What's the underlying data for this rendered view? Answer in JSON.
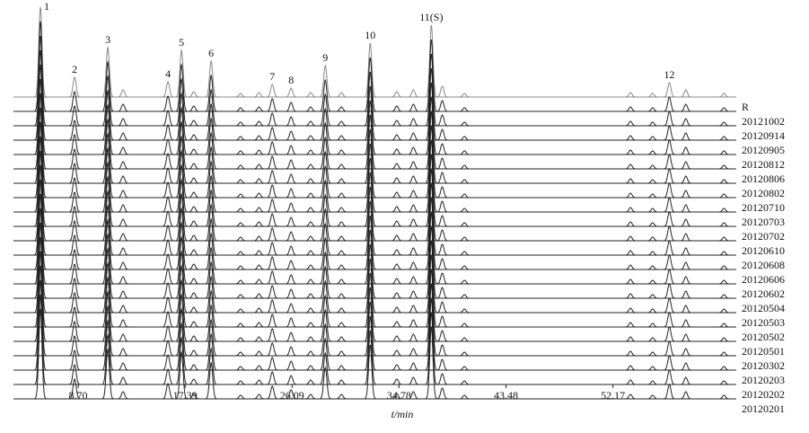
{
  "chart_data": {
    "type": "chromatogram",
    "xlabel": "t/min",
    "xlim": [
      3.44,
      62.2
    ],
    "xticks": [
      {
        "value": 8.7,
        "label": "8.70"
      },
      17.39,
      26.09,
      34.78,
      43.48,
      52.17
    ],
    "series": [
      {
        "name": "R",
        "color": "#888888"
      },
      {
        "name": "20121002",
        "color": "#222222"
      },
      {
        "name": "20120914",
        "color": "#222222"
      },
      {
        "name": "20120905",
        "color": "#222222"
      },
      {
        "name": "20120812",
        "color": "#222222"
      },
      {
        "name": "20120806",
        "color": "#222222"
      },
      {
        "name": "20120802",
        "color": "#222222"
      },
      {
        "name": "20120710",
        "color": "#222222"
      },
      {
        "name": "20120703",
        "color": "#222222"
      },
      {
        "name": "20120702",
        "color": "#222222"
      },
      {
        "name": "20120610",
        "color": "#222222"
      },
      {
        "name": "20120608",
        "color": "#222222"
      },
      {
        "name": "20120606",
        "color": "#222222"
      },
      {
        "name": "20120602",
        "color": "#222222"
      },
      {
        "name": "20120504",
        "color": "#222222"
      },
      {
        "name": "20120503",
        "color": "#222222"
      },
      {
        "name": "20120502",
        "color": "#222222"
      },
      {
        "name": "20120501",
        "color": "#222222"
      },
      {
        "name": "20120302",
        "color": "#222222"
      },
      {
        "name": "20120203",
        "color": "#222222"
      },
      {
        "name": "20120202",
        "color": "#222222"
      },
      {
        "name": "20120201",
        "color": "#222222"
      }
    ],
    "peaks": {
      "labels": [
        "1",
        "2",
        "3",
        null,
        "4",
        "5",
        null,
        "6",
        null,
        null,
        "7",
        "8",
        null,
        "9",
        null,
        "10",
        null,
        null,
        "11(S)",
        null,
        null,
        null,
        null,
        "12",
        null,
        null
      ],
      "x": [
        5.63,
        8.41,
        11.11,
        12.35,
        16.0,
        17.1,
        18.1,
        19.51,
        21.9,
        23.4,
        24.48,
        26.01,
        27.6,
        28.79,
        30.1,
        32.44,
        34.6,
        35.95,
        37.41,
        38.3,
        40.1,
        53.6,
        55.4,
        56.76,
        58.1,
        61.2
      ],
      "heights": [
        100,
        22,
        55,
        8,
        17,
        52,
        6,
        40,
        4,
        5,
        14,
        10,
        5,
        35,
        5,
        60,
        6,
        8,
        80,
        12,
        4,
        5,
        4,
        16,
        8,
        4
      ]
    }
  }
}
